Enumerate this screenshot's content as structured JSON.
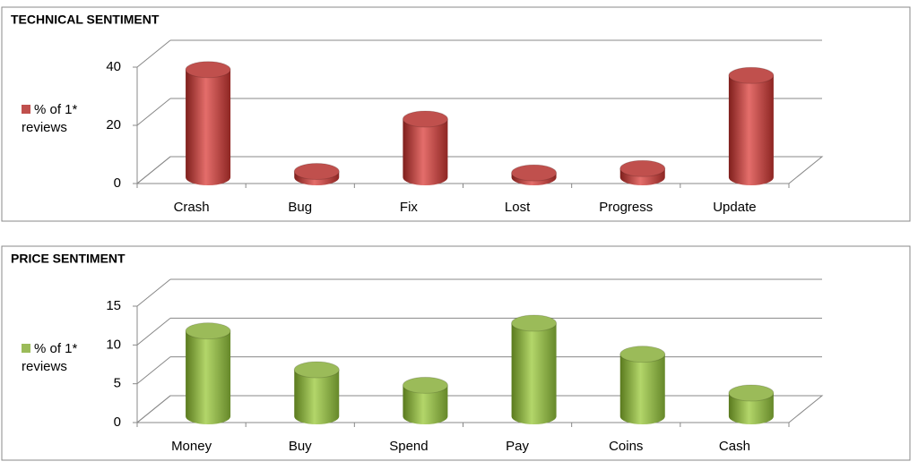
{
  "chart_data": [
    {
      "type": "bar",
      "title": "TECHNICAL SENTIMENT",
      "categories": [
        "Crash",
        "Bug",
        "Fix",
        "Lost",
        "Progress",
        "Update"
      ],
      "series": [
        {
          "name": "% of 1* reviews",
          "color": "#c0504d",
          "values": [
            37,
            2,
            20,
            1.5,
            3,
            35
          ]
        }
      ],
      "ylim": [
        0,
        40
      ],
      "yticks": [
        0,
        20,
        40
      ],
      "grid": true
    },
    {
      "type": "bar",
      "title": "PRICE SENTIMENT",
      "categories": [
        "Money",
        "Buy",
        "Spend",
        "Pay",
        "Coins",
        "Cash"
      ],
      "series": [
        {
          "name": "% of 1* reviews",
          "color": "#9bbb59",
          "values": [
            11,
            6,
            4,
            12,
            8,
            3
          ]
        }
      ],
      "ylim": [
        0,
        15
      ],
      "yticks": [
        0,
        5,
        10,
        15
      ],
      "grid": true
    }
  ]
}
